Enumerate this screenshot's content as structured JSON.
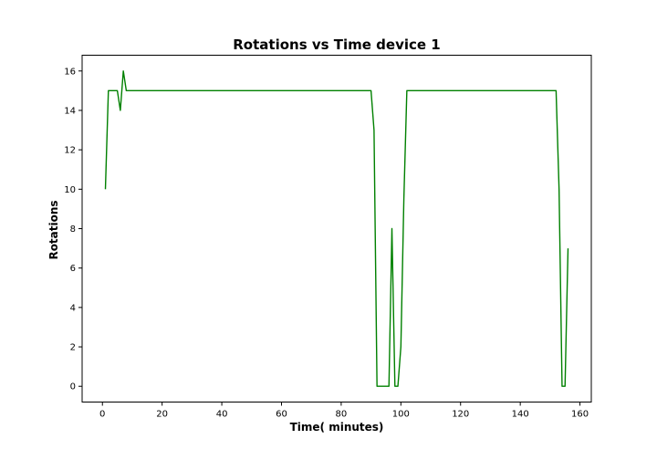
{
  "chart_data": {
    "type": "line",
    "title": "Rotations vs Time device 1",
    "xlabel": "Time( minutes)",
    "ylabel": "Rotations",
    "xlim": [
      -6.8,
      163.8
    ],
    "ylim": [
      -0.8,
      16.8
    ],
    "xticks": [
      0,
      20,
      40,
      60,
      80,
      100,
      120,
      140,
      160
    ],
    "yticks": [
      0,
      2,
      4,
      6,
      8,
      10,
      12,
      14,
      16
    ],
    "grid": false,
    "legend": "none",
    "series": [
      {
        "color": "#008000",
        "x": [
          1,
          2,
          5,
          6,
          7,
          8,
          90,
          91,
          92,
          96,
          97,
          98,
          99,
          100,
          101,
          102,
          152,
          153,
          154,
          155,
          156
        ],
        "y": [
          10,
          15,
          15,
          14,
          16,
          15,
          15,
          13,
          0,
          0,
          8,
          0,
          0,
          2,
          9.5,
          15,
          15,
          10,
          0,
          0,
          7
        ]
      }
    ]
  }
}
